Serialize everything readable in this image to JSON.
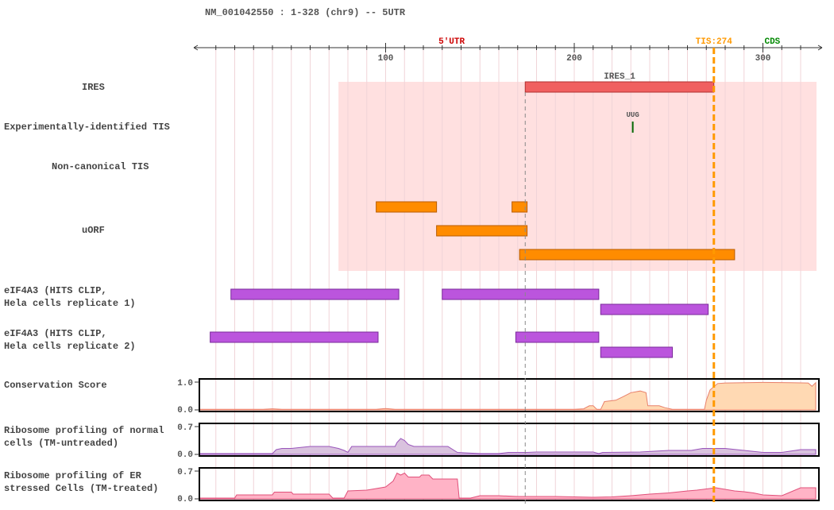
{
  "header": {
    "title": "NM_001042550 : 1-328 (chr9) -- 5UTR"
  },
  "colors": {
    "utr5": "#cc0000",
    "tis": "#ff9900",
    "cds": "#008800",
    "ires_bg": "#ffe0e0",
    "ires_bar": "#f06060",
    "uorf": "#ff8c00",
    "clip": "#bb55dd",
    "uug": "#006600",
    "cons_fill": "#ffd9b3",
    "cons_line": "#e8806a",
    "ribo_normal_fill": "#d9c2de",
    "ribo_normal_line": "#9955bb",
    "ribo_stress_fill": "#ffb3c6",
    "ribo_stress_line": "#e0507a"
  },
  "chart_data": {
    "type": "genome-track",
    "region": {
      "transcript": "NM_001042550",
      "start": 1,
      "end": 328,
      "chromosome": "chr9",
      "feature": "5UTR"
    },
    "axis": {
      "range": [
        1,
        328
      ],
      "ticks": [
        100,
        200,
        300
      ],
      "minor_tick_step": 10
    },
    "region_labels": [
      {
        "label": "5'UTR",
        "position": 135,
        "color_key": "utr5"
      },
      {
        "label": "TIS:274",
        "position": 274,
        "color_key": "tis"
      },
      {
        "label": "CDS",
        "position": 305,
        "color_key": "cds"
      }
    ],
    "markers": [
      {
        "name": "TIS",
        "position": 274,
        "style": "dashed-thick",
        "color_key": "tis"
      },
      {
        "name": "IRES start",
        "position": 174,
        "style": "dashed-thin",
        "color": "#888888"
      }
    ],
    "tracks": [
      {
        "name": "IRES",
        "features": [
          {
            "label": "IRES_1",
            "start": 174,
            "end": 274
          }
        ],
        "shaded_region": {
          "start": 75,
          "end": 328
        }
      },
      {
        "name": "Experimentally-identified TIS",
        "features": [
          {
            "label": "UUG",
            "position": 231
          }
        ]
      },
      {
        "name": "Non-canonical TIS",
        "features": []
      },
      {
        "name": "uORF",
        "features": [
          {
            "start": 95,
            "end": 127,
            "row": 0
          },
          {
            "start": 167,
            "end": 175,
            "row": 0
          },
          {
            "start": 127,
            "end": 175,
            "row": 1
          },
          {
            "start": 171,
            "end": 285,
            "row": 2
          }
        ]
      },
      {
        "name": "eIF4A3 (HITS CLIP,\nHela cells replicate 1)",
        "features": [
          {
            "start": 18,
            "end": 107,
            "row": 0
          },
          {
            "start": 130,
            "end": 213,
            "row": 0
          },
          {
            "start": 214,
            "end": 271,
            "row": 1
          }
        ]
      },
      {
        "name": "eIF4A3 (HITS CLIP,\nHela cells replicate 2)",
        "features": [
          {
            "start": 7,
            "end": 96,
            "row": 0
          },
          {
            "start": 169,
            "end": 213,
            "row": 0
          },
          {
            "start": 214,
            "end": 252,
            "row": 1
          }
        ]
      }
    ],
    "signal_tracks": [
      {
        "name": "Conservation Score",
        "ylim": [
          0.0,
          1.0
        ],
        "tick_labels": [
          "1.0",
          "0.0"
        ],
        "points": [
          [
            1,
            0.02
          ],
          [
            35,
            0.02
          ],
          [
            40,
            0.04
          ],
          [
            45,
            0.02
          ],
          [
            95,
            0.02
          ],
          [
            100,
            0.05
          ],
          [
            105,
            0.02
          ],
          [
            200,
            0.02
          ],
          [
            205,
            0.04
          ],
          [
            208,
            0.15
          ],
          [
            210,
            0.15
          ],
          [
            212,
            0.02
          ],
          [
            214,
            0.02
          ],
          [
            216,
            0.3
          ],
          [
            222,
            0.35
          ],
          [
            226,
            0.48
          ],
          [
            230,
            0.62
          ],
          [
            235,
            0.68
          ],
          [
            238,
            0.62
          ],
          [
            239,
            0.15
          ],
          [
            245,
            0.15
          ],
          [
            248,
            0.08
          ],
          [
            252,
            0.02
          ],
          [
            269,
            0.02
          ],
          [
            270,
            0.35
          ],
          [
            272,
            0.72
          ],
          [
            276,
            0.95
          ],
          [
            280,
            0.97
          ],
          [
            290,
            0.98
          ],
          [
            300,
            0.99
          ],
          [
            315,
            0.98
          ],
          [
            324,
            0.97
          ],
          [
            326,
            0.85
          ],
          [
            328,
            0.98
          ]
        ],
        "fill_key": "cons_fill",
        "line_key": "cons_line"
      },
      {
        "name": "Ribosome profiling of normal\ncells (TM-untreaded)",
        "ylim": [
          0.0,
          0.7
        ],
        "tick_labels": [
          "0.7",
          "0.0"
        ],
        "points": [
          [
            1,
            0.02
          ],
          [
            40,
            0.02
          ],
          [
            42,
            0.12
          ],
          [
            45,
            0.15
          ],
          [
            50,
            0.15
          ],
          [
            60,
            0.2
          ],
          [
            70,
            0.2
          ],
          [
            75,
            0.15
          ],
          [
            78,
            0.1
          ],
          [
            80,
            0.05
          ],
          [
            82,
            0.2
          ],
          [
            105,
            0.2
          ],
          [
            106,
            0.3
          ],
          [
            108,
            0.4
          ],
          [
            110,
            0.35
          ],
          [
            112,
            0.25
          ],
          [
            115,
            0.2
          ],
          [
            125,
            0.2
          ],
          [
            133,
            0.2
          ],
          [
            138,
            0.05
          ],
          [
            150,
            0.02
          ],
          [
            160,
            0.02
          ],
          [
            165,
            0.05
          ],
          [
            170,
            0.05
          ],
          [
            175,
            0.05
          ],
          [
            180,
            0.06
          ],
          [
            195,
            0.06
          ],
          [
            210,
            0.06
          ],
          [
            213,
            0.02
          ],
          [
            215,
            0.05
          ],
          [
            235,
            0.06
          ],
          [
            250,
            0.1
          ],
          [
            262,
            0.1
          ],
          [
            268,
            0.15
          ],
          [
            280,
            0.15
          ],
          [
            290,
            0.1
          ],
          [
            300,
            0.05
          ],
          [
            310,
            0.05
          ],
          [
            320,
            0.12
          ],
          [
            328,
            0.12
          ]
        ],
        "fill_key": "ribo_normal_fill",
        "line_key": "ribo_normal_line"
      },
      {
        "name": "Ribosome profiling of ER\nstressed Cells (TM-treated)",
        "ylim": [
          0.0,
          0.7
        ],
        "tick_labels": [
          "0.7",
          "0.0"
        ],
        "points": [
          [
            1,
            0.02
          ],
          [
            20,
            0.02
          ],
          [
            21,
            0.1
          ],
          [
            40,
            0.1
          ],
          [
            41,
            0.17
          ],
          [
            50,
            0.17
          ],
          [
            51,
            0.12
          ],
          [
            70,
            0.12
          ],
          [
            72,
            0.02
          ],
          [
            78,
            0.02
          ],
          [
            80,
            0.2
          ],
          [
            90,
            0.22
          ],
          [
            100,
            0.3
          ],
          [
            104,
            0.45
          ],
          [
            106,
            0.65
          ],
          [
            108,
            0.6
          ],
          [
            110,
            0.65
          ],
          [
            112,
            0.55
          ],
          [
            118,
            0.55
          ],
          [
            119,
            0.6
          ],
          [
            123,
            0.6
          ],
          [
            125,
            0.5
          ],
          [
            138,
            0.5
          ],
          [
            139,
            0.02
          ],
          [
            145,
            0.02
          ],
          [
            150,
            0.08
          ],
          [
            160,
            0.08
          ],
          [
            170,
            0.06
          ],
          [
            190,
            0.06
          ],
          [
            200,
            0.05
          ],
          [
            210,
            0.04
          ],
          [
            220,
            0.05
          ],
          [
            230,
            0.08
          ],
          [
            240,
            0.12
          ],
          [
            250,
            0.15
          ],
          [
            260,
            0.2
          ],
          [
            265,
            0.22
          ],
          [
            270,
            0.25
          ],
          [
            275,
            0.28
          ],
          [
            285,
            0.2
          ],
          [
            290,
            0.18
          ],
          [
            295,
            0.15
          ],
          [
            300,
            0.1
          ],
          [
            310,
            0.08
          ],
          [
            320,
            0.28
          ],
          [
            328,
            0.28
          ]
        ],
        "fill_key": "ribo_stress_fill",
        "line_key": "ribo_stress_line"
      }
    ]
  }
}
